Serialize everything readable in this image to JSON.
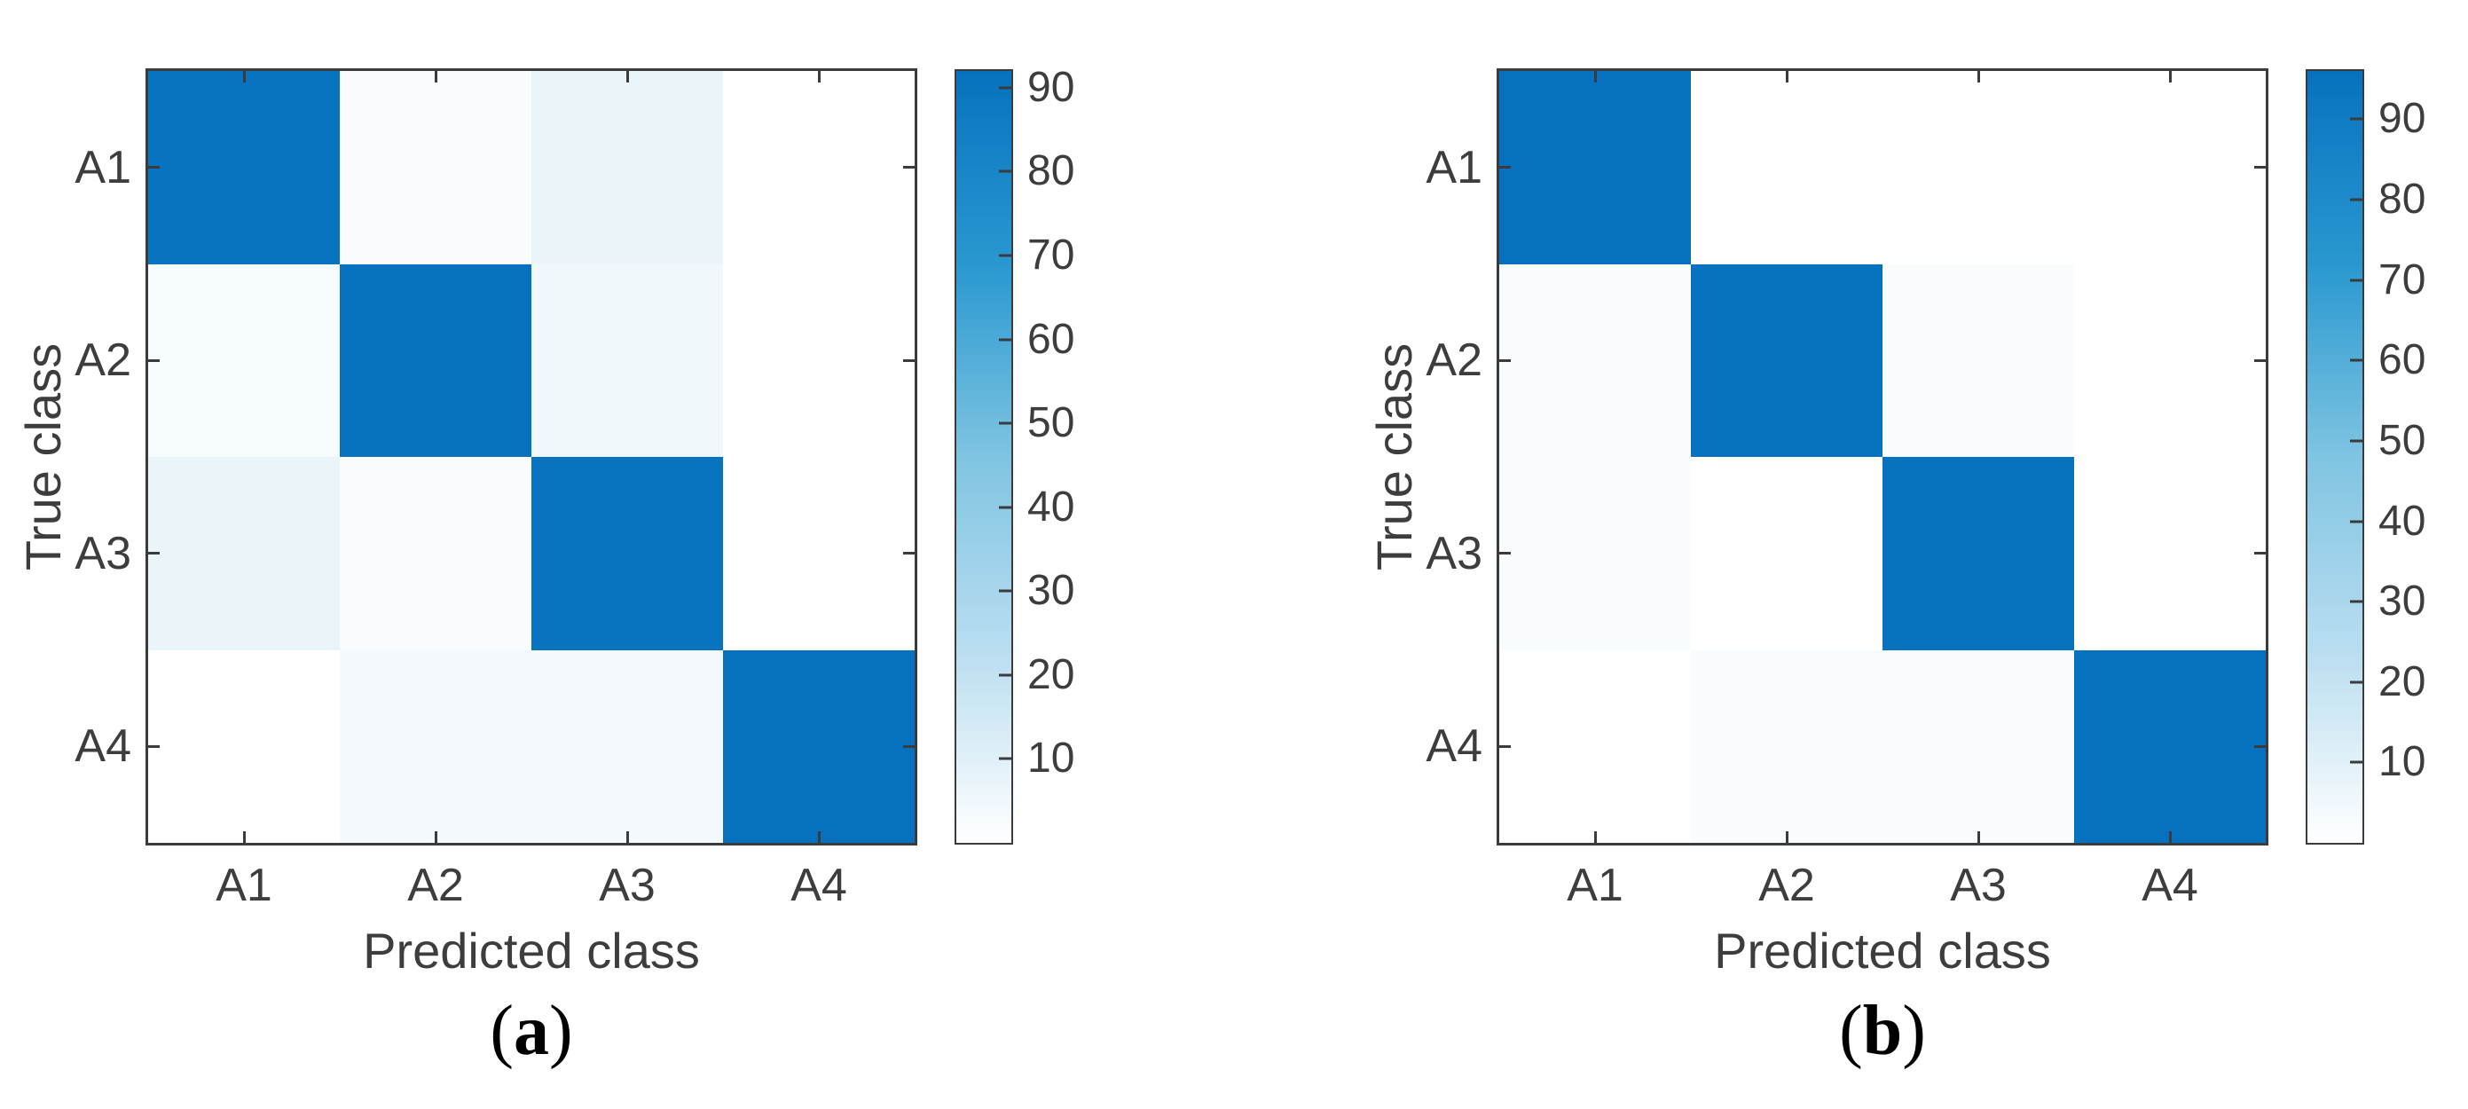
{
  "colors": {
    "accent_blue": "#0672bf",
    "axis": "#3b3b3b",
    "text": "#3d3d3d",
    "background": "#ffffff"
  },
  "colormap_stops": [
    {
      "t": 0.0,
      "c": "#ffffff"
    },
    {
      "t": 0.25,
      "c": "#b9ddf0"
    },
    {
      "t": 0.5,
      "c": "#7fc4e2"
    },
    {
      "t": 0.75,
      "c": "#2998d0"
    },
    {
      "t": 1.0,
      "c": "#0672bf"
    }
  ],
  "chart_data": [
    {
      "type": "heatmap",
      "caption_open": "(",
      "caption_letter": "a",
      "caption_close": ")",
      "xlabel": "Predicted class",
      "ylabel": "True class",
      "categories": [
        "A1",
        "A2",
        "A3",
        "A4"
      ],
      "matrix_rows_true_cols_predicted": [
        [
          91,
          2,
          7,
          0
        ],
        [
          3,
          92,
          5,
          0
        ],
        [
          7,
          2,
          91,
          0
        ],
        [
          0,
          4,
          4,
          92
        ]
      ],
      "color_scale_min": 0,
      "color_scale_max": 92,
      "colorbar_ticks": [
        10,
        20,
        30,
        40,
        50,
        60,
        70,
        80,
        90
      ],
      "legend_position": "right-colorbar",
      "grid": false
    },
    {
      "type": "heatmap",
      "caption_open": "(",
      "caption_letter": "b",
      "caption_close": ")",
      "xlabel": "Predicted class",
      "ylabel": "True class",
      "categories": [
        "A1",
        "A2",
        "A3",
        "A4"
      ],
      "matrix_rows_true_cols_predicted": [
        [
          96,
          0,
          0,
          0
        ],
        [
          2,
          96,
          2,
          0
        ],
        [
          2,
          0,
          96,
          0
        ],
        [
          0,
          2,
          2,
          96
        ]
      ],
      "color_scale_min": 0,
      "color_scale_max": 96,
      "colorbar_ticks": [
        10,
        20,
        30,
        40,
        50,
        60,
        70,
        80,
        90
      ],
      "legend_position": "right-colorbar",
      "grid": false
    }
  ]
}
